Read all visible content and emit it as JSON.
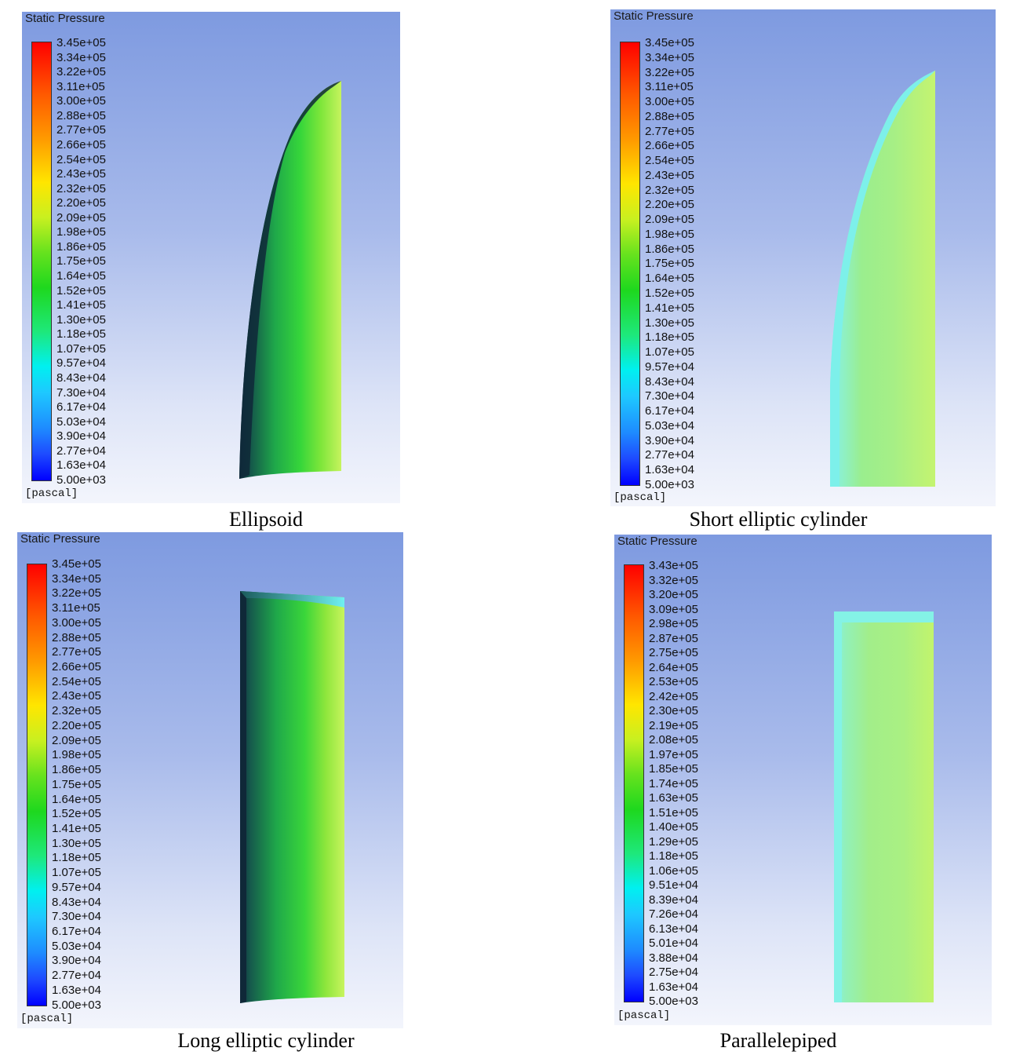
{
  "panels": [
    {
      "title": "Static Pressure",
      "unit": "[pascal]",
      "ticks": [
        "3.45e+05",
        "3.34e+05",
        "3.22e+05",
        "3.11e+05",
        "3.00e+05",
        "2.88e+05",
        "2.77e+05",
        "2.66e+05",
        "2.54e+05",
        "2.43e+05",
        "2.32e+05",
        "2.20e+05",
        "2.09e+05",
        "1.98e+05",
        "1.86e+05",
        "1.75e+05",
        "1.64e+05",
        "1.52e+05",
        "1.41e+05",
        "1.30e+05",
        "1.18e+05",
        "1.07e+05",
        "9.57e+04",
        "8.43e+04",
        "7.30e+04",
        "6.17e+04",
        "5.03e+04",
        "3.90e+04",
        "2.77e+04",
        "1.63e+04",
        "5.00e+03"
      ],
      "caption": "Ellipsoid"
    },
    {
      "title": "Static Pressure",
      "unit": "[pascal]",
      "ticks": [
        "3.45e+05",
        "3.34e+05",
        "3.22e+05",
        "3.11e+05",
        "3.00e+05",
        "2.88e+05",
        "2.77e+05",
        "2.66e+05",
        "2.54e+05",
        "2.43e+05",
        "2.32e+05",
        "2.20e+05",
        "2.09e+05",
        "1.98e+05",
        "1.86e+05",
        "1.75e+05",
        "1.64e+05",
        "1.52e+05",
        "1.41e+05",
        "1.30e+05",
        "1.18e+05",
        "1.07e+05",
        "9.57e+04",
        "8.43e+04",
        "7.30e+04",
        "6.17e+04",
        "5.03e+04",
        "3.90e+04",
        "2.77e+04",
        "1.63e+04",
        "5.00e+03"
      ],
      "caption": "Short elliptic cylinder"
    },
    {
      "title": "Static Pressure",
      "unit": "[pascal]",
      "ticks": [
        "3.45e+05",
        "3.34e+05",
        "3.22e+05",
        "3.11e+05",
        "3.00e+05",
        "2.88e+05",
        "2.77e+05",
        "2.66e+05",
        "2.54e+05",
        "2.43e+05",
        "2.32e+05",
        "2.20e+05",
        "2.09e+05",
        "1.98e+05",
        "1.86e+05",
        "1.75e+05",
        "1.64e+05",
        "1.52e+05",
        "1.41e+05",
        "1.30e+05",
        "1.18e+05",
        "1.07e+05",
        "9.57e+04",
        "8.43e+04",
        "7.30e+04",
        "6.17e+04",
        "5.03e+04",
        "3.90e+04",
        "2.77e+04",
        "1.63e+04",
        "5.00e+03"
      ],
      "caption": "Long elliptic cylinder"
    },
    {
      "title": "Static Pressure",
      "unit": "[pascal]",
      "ticks": [
        "3.43e+05",
        "3.32e+05",
        "3.20e+05",
        "3.09e+05",
        "2.98e+05",
        "2.87e+05",
        "2.75e+05",
        "2.64e+05",
        "2.53e+05",
        "2.42e+05",
        "2.30e+05",
        "2.19e+05",
        "2.08e+05",
        "1.97e+05",
        "1.85e+05",
        "1.74e+05",
        "1.63e+05",
        "1.51e+05",
        "1.40e+05",
        "1.29e+05",
        "1.18e+05",
        "1.06e+05",
        "9.51e+04",
        "8.39e+04",
        "7.26e+04",
        "6.13e+04",
        "5.01e+04",
        "3.88e+04",
        "2.75e+04",
        "1.63e+04",
        "5.00e+03"
      ],
      "caption": "Parallelepiped"
    }
  ],
  "colors": {
    "background_top": "#7e9ae0",
    "background_bottom": "#f3f5fc",
    "scale_max": "#ff0000",
    "scale_mid": "#1ed81e",
    "scale_min": "#0000ff",
    "surface_dark": "#103a4a",
    "surface_green": "#2ecc3e",
    "surface_light": "#c8f56a",
    "surface_cyan": "#80f5e6"
  }
}
